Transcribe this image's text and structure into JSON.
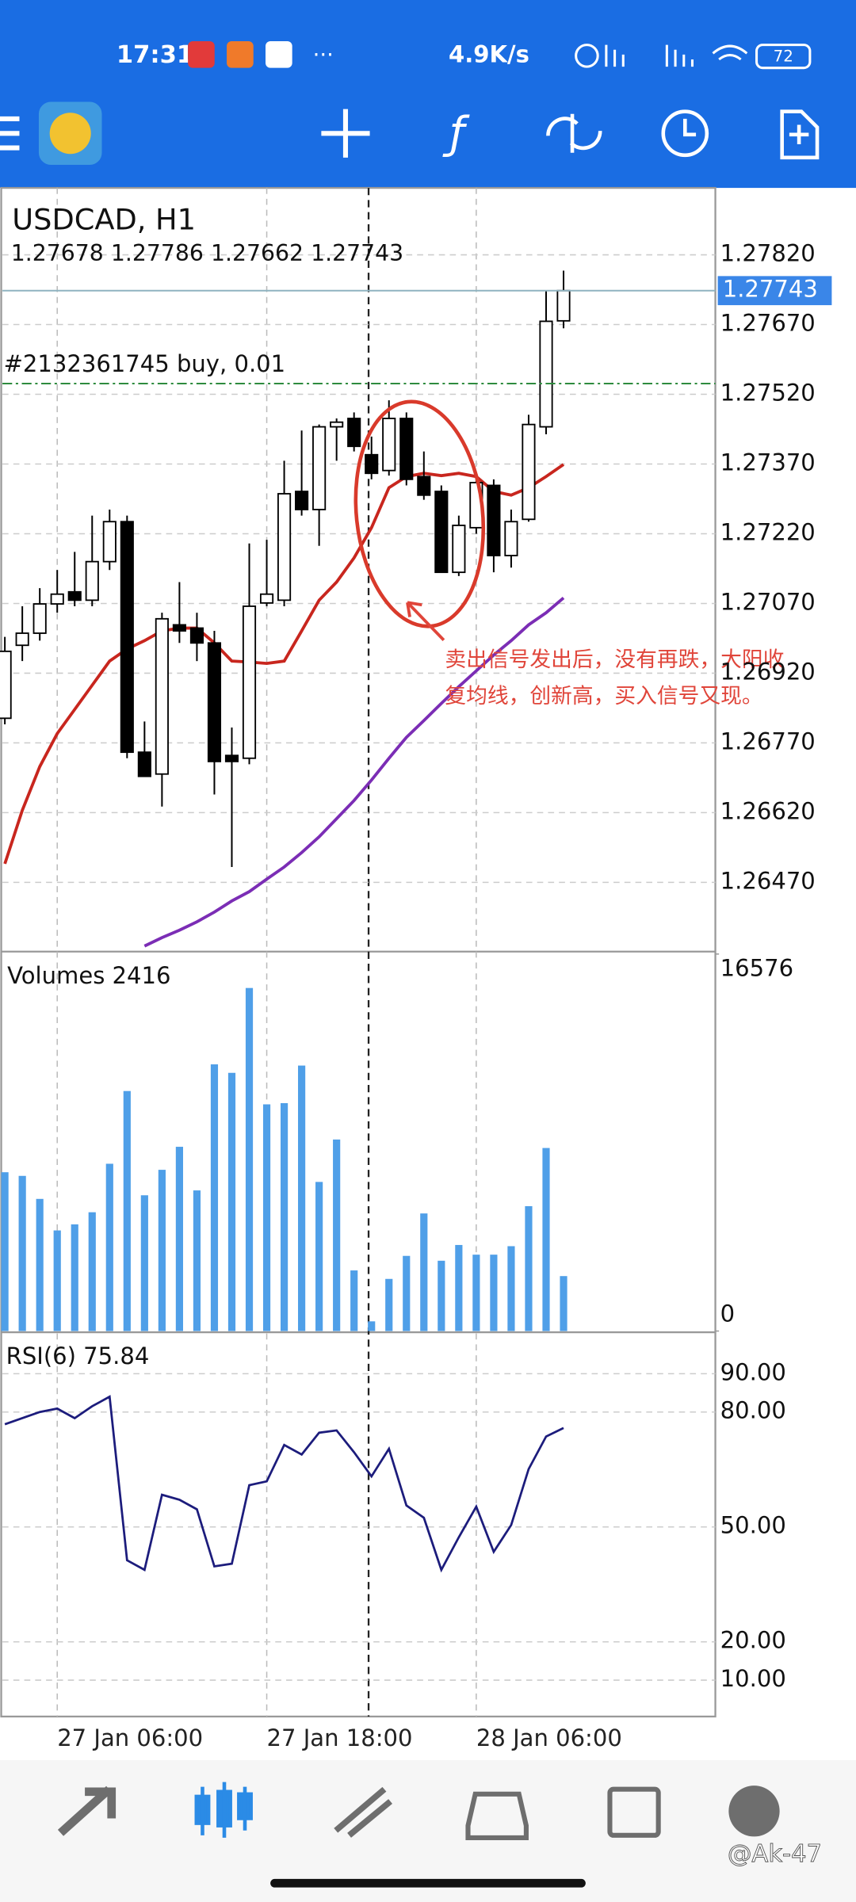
{
  "status_bar": {
    "time": "17:31",
    "speed": "4.9K/s",
    "battery": "72"
  },
  "watermark": "@Ak-47",
  "chart_data": [
    {
      "type": "candlestick",
      "title": "USDCAD, H1",
      "categories": [
        null,
        null,
        null,
        "27 Jan 06:00",
        null,
        null,
        null,
        null,
        null,
        null,
        null,
        null,
        null,
        null,
        null,
        "27 Jan 18:00",
        null,
        null,
        null,
        null,
        null,
        null,
        null,
        null,
        null,
        null,
        null,
        "28 Jan 06:00",
        null,
        null,
        null,
        null,
        null
      ],
      "open": [
        1.26823,
        1.2698,
        1.27006,
        1.27069,
        1.27095,
        1.27077,
        1.2716,
        1.27246,
        1.2675,
        1.26703,
        1.27024,
        1.27017,
        1.26985,
        1.26743,
        1.26737,
        1.27071,
        1.27077,
        1.27311,
        1.27272,
        1.2745,
        1.27468,
        1.2739,
        1.27356,
        1.27468,
        1.27343,
        1.27311,
        1.27137,
        1.27233,
        1.27324,
        1.27173,
        1.27251,
        1.2745,
        1.27678
      ],
      "high": [
        1.26998,
        1.27064,
        1.27103,
        1.27142,
        1.27181,
        1.27259,
        1.27272,
        1.27259,
        1.26816,
        1.2705,
        1.27116,
        1.2705,
        1.27011,
        1.26803,
        1.27199,
        1.27207,
        1.27377,
        1.27442,
        1.27455,
        1.27468,
        1.27481,
        1.27429,
        1.27507,
        1.27481,
        1.27397,
        1.27324,
        1.27259,
        1.27343,
        1.27337,
        1.27272,
        1.27476,
        1.27742,
        1.27786
      ],
      "low": [
        1.2681,
        1.26946,
        1.2699,
        1.2705,
        1.27064,
        1.27064,
        1.27142,
        1.26737,
        1.26698,
        1.26633,
        1.26985,
        1.26946,
        1.26659,
        1.26503,
        1.26724,
        1.27064,
        1.27064,
        1.27259,
        1.27194,
        1.27377,
        1.27397,
        1.27337,
        1.27345,
        1.27324,
        1.27293,
        1.27137,
        1.27129,
        1.2722,
        1.27137,
        1.27147,
        1.27246,
        1.27434,
        1.27662
      ],
      "close": [
        1.26967,
        1.27006,
        1.27069,
        1.2709,
        1.27077,
        1.2716,
        1.27246,
        1.2675,
        1.26698,
        1.27037,
        1.27011,
        1.26985,
        1.2673,
        1.2673,
        1.27064,
        1.2709,
        1.27306,
        1.27272,
        1.2745,
        1.2746,
        1.27408,
        1.2735,
        1.27468,
        1.27337,
        1.27303,
        1.27137,
        1.27238,
        1.2733,
        1.27173,
        1.27246,
        1.27455,
        1.27677,
        1.27743
      ],
      "up_color": "#ffffff",
      "down_color": "#000000",
      "series": [
        {
          "color": "#c8261e",
          "values": [
            1.2651,
            1.26625,
            1.26719,
            1.2679,
            1.26842,
            1.26894,
            1.26946,
            1.26972,
            1.2699,
            1.27011,
            1.27017,
            1.27017,
            1.26985,
            1.26946,
            1.26944,
            1.26941,
            1.26946,
            1.27011,
            1.27077,
            1.27116,
            1.27168,
            1.27233,
            1.27319,
            1.27343,
            1.2735,
            1.27345,
            1.2735,
            1.27343,
            1.27311,
            1.27303,
            1.27319,
            1.27343,
            1.27369
          ]
        },
        {
          "color": "#7b2db5",
          "values": [
            null,
            null,
            null,
            null,
            null,
            null,
            null,
            null,
            1.26333,
            1.26351,
            1.26367,
            1.26385,
            1.26406,
            1.2643,
            1.2645,
            1.26477,
            1.26503,
            1.26534,
            1.26568,
            1.26607,
            1.26646,
            1.2669,
            1.26737,
            1.26782,
            1.26818,
            1.26855,
            1.26891,
            1.26925,
            1.26959,
            1.2699,
            1.27024,
            1.2705,
            1.27082
          ]
        }
      ],
      "ylim": [
        1.26321,
        1.27964
      ],
      "yticks": [
        {
          "value": 1.2782,
          "label": "1.27820"
        },
        {
          "value": 1.2767,
          "label": "1.27670"
        },
        {
          "value": 1.2752,
          "label": "1.27520"
        },
        {
          "value": 1.2737,
          "label": "1.27370"
        },
        {
          "value": 1.2722,
          "label": "1.27220"
        },
        {
          "value": 1.2707,
          "label": "1.27070"
        },
        {
          "value": 1.2692,
          "label": "1.26920"
        },
        {
          "value": 1.2677,
          "label": "1.26770"
        },
        {
          "value": 1.2662,
          "label": "1.26620"
        },
        {
          "value": 1.2647,
          "label": "1.26470"
        }
      ],
      "grid": true,
      "order": {
        "label": "#2132361745 buy, 0.01",
        "price": 1.27543,
        "color": "#2e8b3e"
      },
      "bid_color": "#3a86e8",
      "annotation": {
        "lines": [
          "卖出信号发出后，没有再跌，大阳收",
          "复均线，创新高，买入信号又现。"
        ],
        "color": "#e0453a"
      }
    },
    {
      "type": "bar",
      "title": "Volumes",
      "color": "#4f9fe8",
      "values": [
        6982,
        6822,
        5810,
        4424,
        4690,
        5223,
        7355,
        10553,
        5969,
        7089,
        8101,
        6183,
        11725,
        11352,
        15083,
        9967,
        10020,
        11672,
        6556,
        8421,
        2665,
        426,
        2292,
        3304,
        5170,
        3091,
        3784,
        3358,
        3358,
        3731,
        5490,
        8048,
        2416
      ],
      "ylim": [
        0,
        16576
      ],
      "yticks": [
        0,
        16576
      ]
    },
    {
      "type": "line",
      "title": "RSI(6)",
      "color": "#1c1c7c",
      "values": [
        76.8,
        78.4,
        80.0,
        80.9,
        78.4,
        81.5,
        84.0,
        41.3,
        38.8,
        58.4,
        57.1,
        54.6,
        39.7,
        40.4,
        60.9,
        61.9,
        71.4,
        68.9,
        74.6,
        75.2,
        69.5,
        63.2,
        70.4,
        55.6,
        52.4,
        38.8,
        47.3,
        55.3,
        43.5,
        50.5,
        65.1,
        73.6,
        75.84
      ],
      "ylim": [
        0,
        100
      ],
      "yticks": [
        {
          "value": 90,
          "label": "90.00"
        },
        {
          "value": 80,
          "label": "80.00"
        },
        {
          "value": 50,
          "label": "50.00"
        },
        {
          "value": 20,
          "label": "20.00"
        },
        {
          "value": 10,
          "label": "10.00"
        }
      ],
      "grid": true
    }
  ]
}
